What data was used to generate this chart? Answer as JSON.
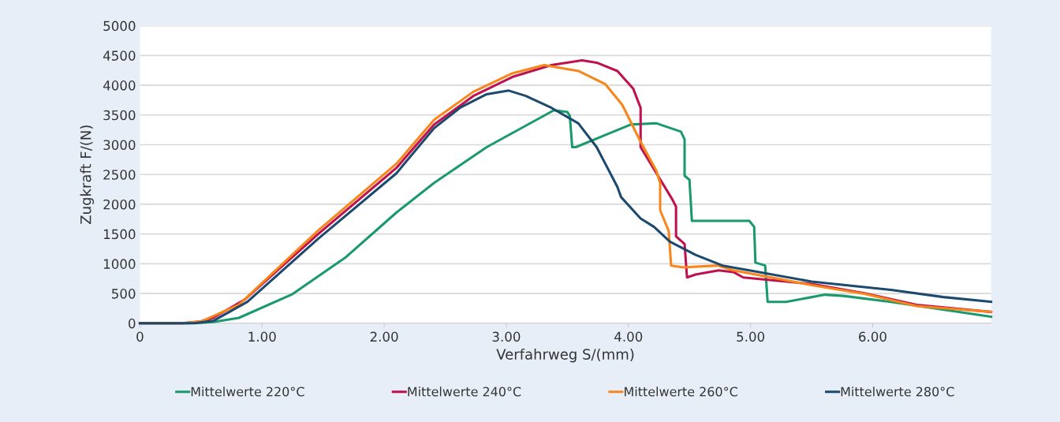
{
  "chart_data": {
    "type": "line",
    "xlabel": "Verfahrweg S/(mm)",
    "ylabel": "Zugkraft F/(N)",
    "xlim": [
      0,
      6.97
    ],
    "ylim": [
      0,
      5000
    ],
    "xticks": [
      0,
      {
        "value": 1,
        "label": "1.00"
      },
      {
        "value": 2,
        "label": "2.00"
      },
      {
        "value": 3,
        "label": "3.00"
      },
      {
        "value": 4,
        "label": "4.00"
      },
      {
        "value": 5,
        "label": "5.00"
      },
      {
        "value": 6,
        "label": "6.00"
      }
    ],
    "yticks": [
      0,
      500,
      1000,
      1500,
      2000,
      2500,
      3000,
      3500,
      4000,
      4500,
      5000
    ],
    "grid": "y",
    "legend": "bottom",
    "marker": "none",
    "line_style": "solid",
    "series": [
      {
        "name": "Mittelwerte 220°C",
        "color": "#1a9a6c",
        "x": [
          0,
          0.4,
          0.6,
          0.81,
          1.25,
          1.68,
          2.1,
          2.41,
          2.84,
          3.39,
          3.5,
          3.52,
          3.54,
          3.57,
          4.02,
          4.23,
          4.43,
          4.46,
          4.46,
          4.5,
          4.52,
          4.99,
          5.03,
          5.04,
          5.12,
          5.14,
          5.29,
          5.61,
          5.76,
          6.15,
          6.97
        ],
        "values": [
          0,
          0,
          20,
          90,
          490,
          1100,
          1860,
          2360,
          2960,
          3580,
          3550,
          3490,
          2960,
          2960,
          3340,
          3360,
          3220,
          3090,
          2480,
          2410,
          1720,
          1720,
          1620,
          1020,
          970,
          360,
          360,
          480,
          460,
          360,
          110
        ]
      },
      {
        "name": "Mittelwerte 240°C",
        "color": "#c0114f",
        "x": [
          0,
          0.35,
          0.5,
          0.6,
          0.86,
          1.46,
          2.1,
          2.41,
          2.73,
          3.05,
          3.37,
          3.62,
          3.74,
          3.91,
          4.04,
          4.1,
          4.1,
          4.23,
          4.36,
          4.39,
          4.39,
          4.46,
          4.48,
          4.55,
          4.74,
          4.86,
          4.94,
          5.5,
          5.94,
          6.36,
          6.97
        ],
        "values": [
          0,
          0,
          30,
          90,
          400,
          1500,
          2610,
          3340,
          3820,
          4140,
          4340,
          4420,
          4380,
          4240,
          3940,
          3620,
          2960,
          2520,
          2080,
          1960,
          1460,
          1330,
          770,
          820,
          890,
          860,
          770,
          660,
          500,
          310,
          190
        ]
      },
      {
        "name": "Mittelwerte 260°C",
        "color": "#f7861c",
        "x": [
          0,
          0.35,
          0.5,
          0.81,
          1.46,
          2.1,
          2.41,
          2.73,
          3.05,
          3.31,
          3.59,
          3.81,
          3.95,
          4.1,
          4.23,
          4.26,
          4.26,
          4.33,
          4.35,
          4.45,
          4.73,
          4.86,
          4.99,
          5.5,
          5.94,
          6.36,
          6.97
        ],
        "values": [
          0,
          0,
          30,
          310,
          1560,
          2680,
          3420,
          3890,
          4200,
          4340,
          4240,
          4020,
          3670,
          3050,
          2560,
          2350,
          1900,
          1550,
          970,
          940,
          970,
          890,
          840,
          640,
          490,
          290,
          190
        ]
      },
      {
        "name": "Mittelwerte 280°C",
        "color": "#1b4a6e",
        "x": [
          0,
          0.45,
          0.6,
          0.88,
          1.46,
          2.1,
          2.41,
          2.62,
          2.84,
          3.02,
          3.16,
          3.37,
          3.59,
          3.74,
          3.91,
          3.94,
          4.1,
          4.21,
          4.34,
          4.55,
          4.77,
          4.99,
          5.5,
          6.15,
          6.58,
          6.97
        ],
        "values": [
          0,
          0,
          40,
          360,
          1420,
          2520,
          3280,
          3620,
          3850,
          3910,
          3820,
          3620,
          3360,
          2960,
          2290,
          2120,
          1760,
          1620,
          1370,
          1150,
          970,
          890,
          700,
          560,
          440,
          360
        ]
      }
    ]
  }
}
